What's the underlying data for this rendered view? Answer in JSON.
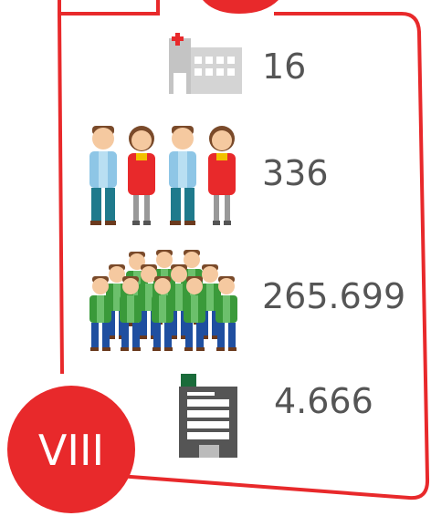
{
  "badge": "VIII",
  "items": [
    {
      "value": "16"
    },
    {
      "value": "336"
    },
    {
      "value": "265.699"
    },
    {
      "value": "4.666"
    }
  ]
}
